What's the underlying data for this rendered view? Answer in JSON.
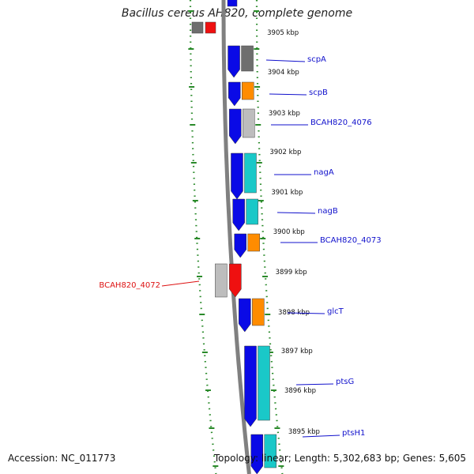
{
  "title": "Bacillus cereus AH820, complete genome",
  "footer": {
    "accession": "Accession: NC_011773",
    "summary": "Topology: linear; Length: 5,302,683 bp; Genes: 5,605"
  },
  "colors": {
    "cds_forward": "#0a0ae6",
    "cds_reverse": "#ef1010",
    "unknown_function": "#6e6e6e",
    "light_gray": "#bdbdbd",
    "metabolism": "#ff8c00",
    "transport": "#1ac8c8",
    "label_forward": "#1111cc",
    "label_reverse": "#dd1111",
    "backbone": "#808080",
    "ticks": "#2a8a2a"
  },
  "scale_labels": [
    "3905 kbp",
    "3904 kbp",
    "3903 kbp",
    "3902 kbp",
    "3901 kbp",
    "3900 kbp",
    "3899 kbp",
    "3898 kbp",
    "3897 kbp",
    "3896 kbp",
    "3895 kbp"
  ],
  "genes": [
    {
      "name": "scpA",
      "strand": "forward",
      "category_color": "unknown_function"
    },
    {
      "name": "scpB",
      "strand": "forward",
      "category_color": "metabolism"
    },
    {
      "name": "BCAH820_4076",
      "strand": "forward",
      "category_color": "light_gray"
    },
    {
      "name": "nagA",
      "strand": "forward",
      "category_color": "transport"
    },
    {
      "name": "nagB",
      "strand": "forward",
      "category_color": "transport"
    },
    {
      "name": "BCAH820_4073",
      "strand": "forward",
      "category_color": "metabolism"
    },
    {
      "name": "BCAH820_4072",
      "strand": "reverse",
      "category_color": "light_gray"
    },
    {
      "name": "glcT",
      "strand": "forward",
      "category_color": "metabolism"
    },
    {
      "name": "ptsG",
      "strand": "forward",
      "category_color": "transport"
    },
    {
      "name": "ptsH1",
      "strand": "forward",
      "category_color": "transport"
    }
  ]
}
